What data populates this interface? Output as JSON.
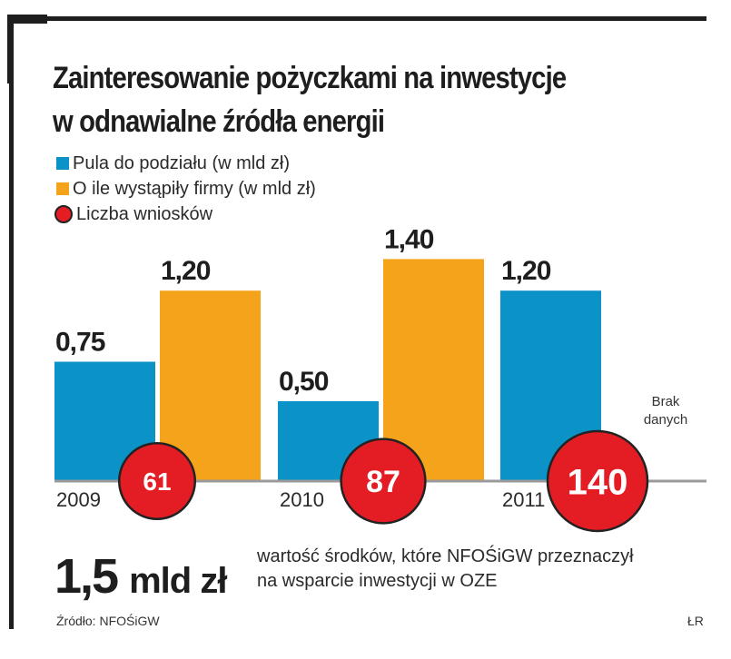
{
  "title_lines": [
    "Zainteresowanie pożyczkami na inwestycje",
    "w odnawialne źródła energii"
  ],
  "legend": [
    {
      "label": "Pula do podziału (w mld zł)",
      "color": "#0b93c8",
      "shape": "square"
    },
    {
      "label": "O ile wystąpiły firmy (w mld zł)",
      "color": "#f5a31a",
      "shape": "square"
    },
    {
      "label": "Liczba wniosków",
      "color": "#e41d24",
      "shape": "circle"
    }
  ],
  "chart_data": {
    "type": "bar",
    "title": "Zainteresowanie pożyczkami na inwestycje w odnawialne źródła energii",
    "xlabel": "",
    "ylabel": "",
    "categories": [
      "2009",
      "2010",
      "2011"
    ],
    "series": [
      {
        "name": "Pula do podziału (w mld zł)",
        "color": "#0b93c8",
        "values": [
          0.75,
          0.5,
          1.2
        ],
        "labels": [
          "0,75",
          "0,50",
          "1,20"
        ]
      },
      {
        "name": "O ile wystąpiły firmy (w mld zł)",
        "color": "#f5a31a",
        "values": [
          1.2,
          1.4,
          null
        ],
        "labels": [
          "1,20",
          "1,40",
          null
        ]
      }
    ],
    "circles": {
      "name": "Liczba wniosków",
      "color": "#e41d24",
      "values": [
        61,
        87,
        140
      ],
      "labels": [
        "61",
        "87",
        "140"
      ]
    },
    "annotations": [
      {
        "category": "2011",
        "series": "O ile wystąpiły firmy (w mld zł)",
        "text_lines": [
          "Brak",
          "danych"
        ]
      }
    ],
    "ylim": [
      0,
      1.5
    ],
    "grid": false,
    "legend_position": "top-left"
  },
  "summary": {
    "value": "1,5",
    "unit": "mld zł",
    "description_lines": [
      "wartość środków, które NFOŚiGW przeznaczył",
      "na wsparcie inwestycji w OZE"
    ]
  },
  "source": "Źródło: NFOŚiGW",
  "author": "ŁR"
}
